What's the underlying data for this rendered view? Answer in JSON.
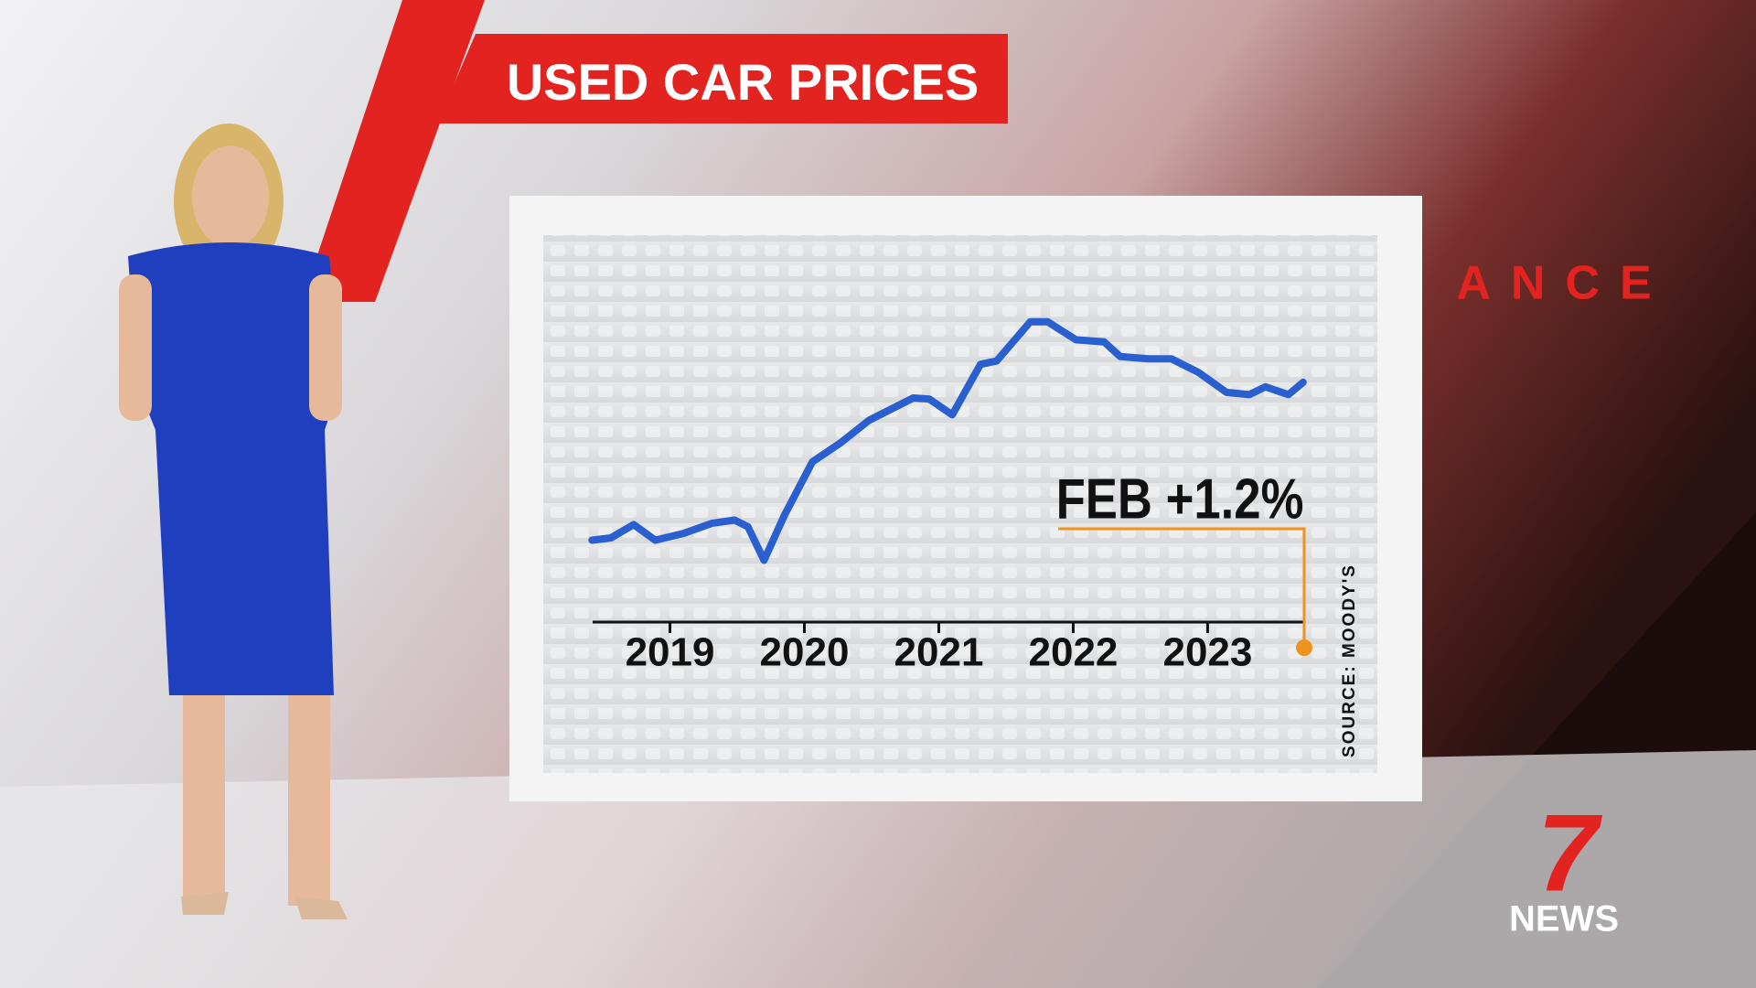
{
  "chart_data": {
    "type": "line",
    "title": "USED CAR PRICES",
    "x": [
      2018.92,
      2019.06,
      2019.23,
      2019.39,
      2019.6,
      2019.81,
      2019.98,
      2020.08,
      2020.2,
      2020.35,
      2020.56,
      2020.77,
      2020.98,
      2021.31,
      2021.43,
      2021.6,
      2021.81,
      2021.93,
      2022.18,
      2022.31,
      2022.52,
      2022.73,
      2022.85,
      2023.06,
      2023.23,
      2023.43,
      2023.64,
      2023.81,
      2023.93,
      2024.1,
      2024.21
    ],
    "values": [
      38,
      40,
      52,
      38,
      44,
      53,
      56,
      50,
      20,
      60,
      108,
      125,
      145,
      165,
      164,
      150,
      195,
      198,
      233,
      233,
      217,
      215,
      202,
      200,
      200,
      188,
      170,
      168,
      175,
      168,
      179
    ],
    "color": "#2a5fd0",
    "xlim": [
      2018.85,
      2024.3
    ],
    "xticks": [
      {
        "value": 2019.5,
        "label": "2019"
      },
      {
        "value": 2020.5,
        "label": "2020"
      },
      {
        "value": 2021.5,
        "label": "2021"
      },
      {
        "value": 2022.5,
        "label": "2022"
      },
      {
        "value": 2023.5,
        "label": "2023"
      }
    ],
    "ylim": [
      0,
      250
    ],
    "annotation": "FEB +1.2%",
    "source": "SOURCE: MOODY'S"
  },
  "background_text": "ANCE",
  "logo": {
    "number": "7",
    "text": "NEWS"
  }
}
